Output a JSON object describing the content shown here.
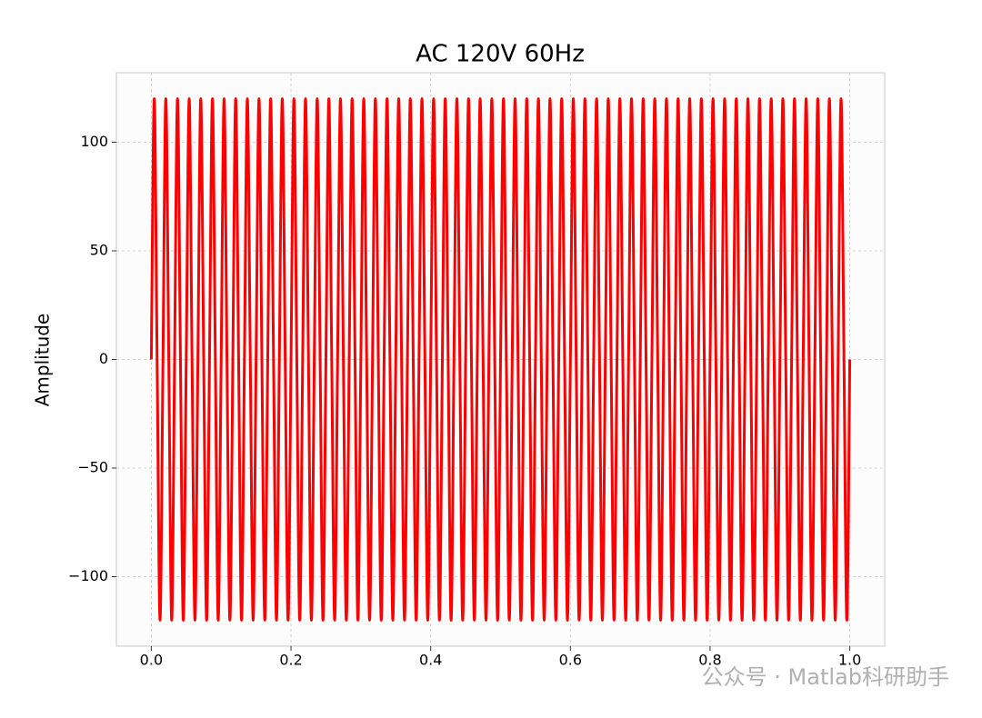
{
  "chart_data": {
    "type": "line",
    "title": "AC 120V 60Hz",
    "y_label": "Amplitude",
    "watermark": "公众号 · Matlab科研助手",
    "xlim": [
      -0.05,
      1.05
    ],
    "ylim": [
      -132,
      132
    ],
    "xticks": [
      {
        "value": 0,
        "label": "0.0"
      },
      {
        "value": 0.2,
        "label": "0.2"
      },
      {
        "value": 0.4,
        "label": "0.4"
      },
      {
        "value": 0.6,
        "label": "0.6"
      },
      {
        "value": 0.8,
        "label": "0.8"
      },
      {
        "value": 1,
        "label": "1.0"
      }
    ],
    "yticks": [
      {
        "value": -100,
        "label": "−100"
      },
      {
        "value": -50,
        "label": "−50"
      },
      0,
      50,
      100
    ],
    "grid": true,
    "x": [
      0,
      0.0042,
      0.0083,
      0.0125,
      0.0167,
      0.0208,
      0.025,
      0.0292,
      0.0333,
      0.0375,
      0.0417,
      0.0458,
      0.05,
      0.0542,
      0.0583,
      0.0625,
      0.0667,
      0.0708,
      0.075,
      0.0792,
      0.0833,
      0.0875,
      0.0917,
      0.0958,
      0.1,
      0.1042,
      0.1083,
      0.1125,
      0.1167,
      0.1208,
      0.125,
      0.1292,
      0.1333,
      0.1375,
      0.1417,
      0.1458,
      0.15,
      0.1542,
      0.1583,
      0.1625,
      0.1667,
      0.1708,
      0.175,
      0.1792,
      0.1833,
      0.1875,
      0.1917,
      0.1958,
      0.2,
      0.2042,
      0.2083,
      0.2125,
      0.2167,
      0.2208,
      0.225,
      0.2292,
      0.2333,
      0.2375,
      0.2417,
      0.2458,
      0.25,
      0.2542,
      0.2583,
      0.2625,
      0.2667,
      0.2708,
      0.275,
      0.2792,
      0.2833,
      0.2875,
      0.2917,
      0.2958,
      0.3,
      0.3042,
      0.3083,
      0.3125,
      0.3167,
      0.3208,
      0.325,
      0.3292,
      0.3333,
      0.3375,
      0.3417,
      0.3458,
      0.35,
      0.3542,
      0.3583,
      0.3625,
      0.3667,
      0.3708,
      0.375,
      0.3792,
      0.3833,
      0.3875,
      0.3917,
      0.3958,
      0.4,
      0.4042,
      0.4083,
      0.4125,
      0.4167,
      0.4208,
      0.425,
      0.4292,
      0.4333,
      0.4375,
      0.4417,
      0.4458,
      0.45,
      0.4542,
      0.4583,
      0.4625,
      0.4667,
      0.4708,
      0.475,
      0.4792,
      0.4833,
      0.4875,
      0.4917,
      0.4958,
      0.5,
      0.5042,
      0.5083,
      0.5125,
      0.5167,
      0.5208,
      0.525,
      0.5292,
      0.5333,
      0.5375,
      0.5417,
      0.5458,
      0.55,
      0.5542,
      0.5583,
      0.5625,
      0.5667,
      0.5708,
      0.575,
      0.5792,
      0.5833,
      0.5875,
      0.5917,
      0.5958,
      0.6,
      0.6042,
      0.6083,
      0.6125,
      0.6167,
      0.6208,
      0.625,
      0.6292,
      0.6333,
      0.6375,
      0.6417,
      0.6458,
      0.65,
      0.6542,
      0.6583,
      0.6625,
      0.6667,
      0.6708,
      0.675,
      0.6792,
      0.6833,
      0.6875,
      0.6917,
      0.6958,
      0.7,
      0.7042,
      0.7083,
      0.7125,
      0.7167,
      0.7208,
      0.725,
      0.7292,
      0.7333,
      0.7375,
      0.7417,
      0.7458,
      0.75,
      0.7542,
      0.7583,
      0.7625,
      0.7667,
      0.7708,
      0.775,
      0.7792,
      0.7833,
      0.7875,
      0.7917,
      0.7958,
      0.8,
      0.8042,
      0.8083,
      0.8125,
      0.8167,
      0.8208,
      0.825,
      0.8292,
      0.8333,
      0.8375,
      0.8417,
      0.8458,
      0.85,
      0.8542,
      0.8583,
      0.8625,
      0.8667,
      0.8708,
      0.875,
      0.8792,
      0.8833,
      0.8875,
      0.8917,
      0.8958,
      0.9,
      0.9042,
      0.9083,
      0.9125,
      0.9167,
      0.9208,
      0.925,
      0.9292,
      0.9333,
      0.9375,
      0.9417,
      0.9458,
      0.95,
      0.9542,
      0.9583,
      0.9625,
      0.9667,
      0.9708,
      0.975,
      0.9792,
      0.9833,
      0.9875,
      0.9917,
      0.9958,
      1
    ],
    "series": [
      {
        "color": "#ff0000",
        "values": [
          0,
          120,
          0,
          -120,
          0,
          120,
          0,
          -120,
          0,
          120,
          0,
          -120,
          0,
          120,
          0,
          -120,
          0,
          120,
          0,
          -120,
          0,
          120,
          0,
          -120,
          0,
          120,
          0,
          -120,
          0,
          120,
          0,
          -120,
          0,
          120,
          0,
          -120,
          0,
          120,
          0,
          -120,
          0,
          120,
          0,
          -120,
          0,
          120,
          0,
          -120,
          0,
          120,
          0,
          -120,
          0,
          120,
          0,
          -120,
          0,
          120,
          0,
          -120,
          0,
          120,
          0,
          -120,
          0,
          120,
          0,
          -120,
          0,
          120,
          0,
          -120,
          0,
          120,
          0,
          -120,
          0,
          120,
          0,
          -120,
          0,
          120,
          0,
          -120,
          0,
          120,
          0,
          -120,
          0,
          120,
          0,
          -120,
          0,
          120,
          0,
          -120,
          0,
          120,
          0,
          -120,
          0,
          120,
          0,
          -120,
          0,
          120,
          0,
          -120,
          0,
          120,
          0,
          -120,
          0,
          120,
          0,
          -120,
          0,
          120,
          0,
          -120,
          0,
          120,
          0,
          -120,
          0,
          120,
          0,
          -120,
          0,
          120,
          0,
          -120,
          0,
          120,
          0,
          -120,
          0,
          120,
          0,
          -120,
          0,
          120,
          0,
          -120,
          0,
          120,
          0,
          -120,
          0,
          120,
          0,
          -120,
          0,
          120,
          0,
          -120,
          0,
          120,
          0,
          -120,
          0,
          120,
          0,
          -120,
          0,
          120,
          0,
          -120,
          0,
          120,
          0,
          -120,
          0,
          120,
          0,
          -120,
          0,
          120,
          0,
          -120,
          0,
          120,
          0,
          -120,
          0,
          120,
          0,
          -120,
          0,
          120,
          0,
          -120,
          0,
          120,
          0,
          -120,
          0,
          120,
          0,
          -120,
          0,
          120,
          0,
          -120,
          0,
          120,
          0,
          -120,
          0,
          120,
          0,
          -120,
          0,
          120,
          0,
          -120,
          0,
          120,
          0,
          -120,
          0,
          120,
          0,
          -120,
          0,
          120,
          0,
          -120,
          0,
          120,
          0,
          -120,
          0,
          120,
          0,
          -120,
          0,
          120,
          0,
          -120,
          0
        ]
      }
    ]
  }
}
